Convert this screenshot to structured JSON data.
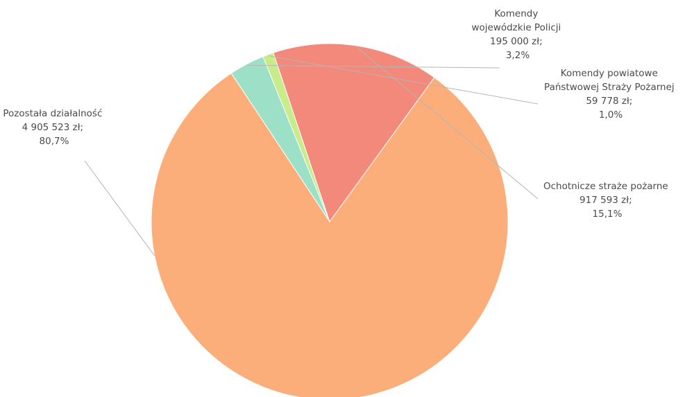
{
  "chart_data": {
    "type": "pie",
    "title": "",
    "slices": [
      {
        "name_lines": [
          "Komendy",
          "wojewódzkie Policji"
        ],
        "value_text": "195 000 zł;",
        "pct_text": "3,2%",
        "value": 195000,
        "percent": 3.2,
        "color": "#9de0c8"
      },
      {
        "name_lines": [
          "Komendy powiatowe",
          "Państwowej Straży Pożarnej"
        ],
        "value_text": "59 778 zł;",
        "pct_text": "1,0%",
        "value": 59778,
        "percent": 1.0,
        "color": "#c9ec8a"
      },
      {
        "name_lines": [
          "Ochotnicze straże pożarne"
        ],
        "value_text": "917 593 zł;",
        "pct_text": "15,1%",
        "value": 917593,
        "percent": 15.1,
        "color": "#f2897b"
      },
      {
        "name_lines": [
          "Pozostała działalność"
        ],
        "value_text": "4 905 523 zł;",
        "pct_text": "80,7%",
        "value": 4905523,
        "percent": 80.7,
        "color": "#fbae7a"
      }
    ]
  }
}
